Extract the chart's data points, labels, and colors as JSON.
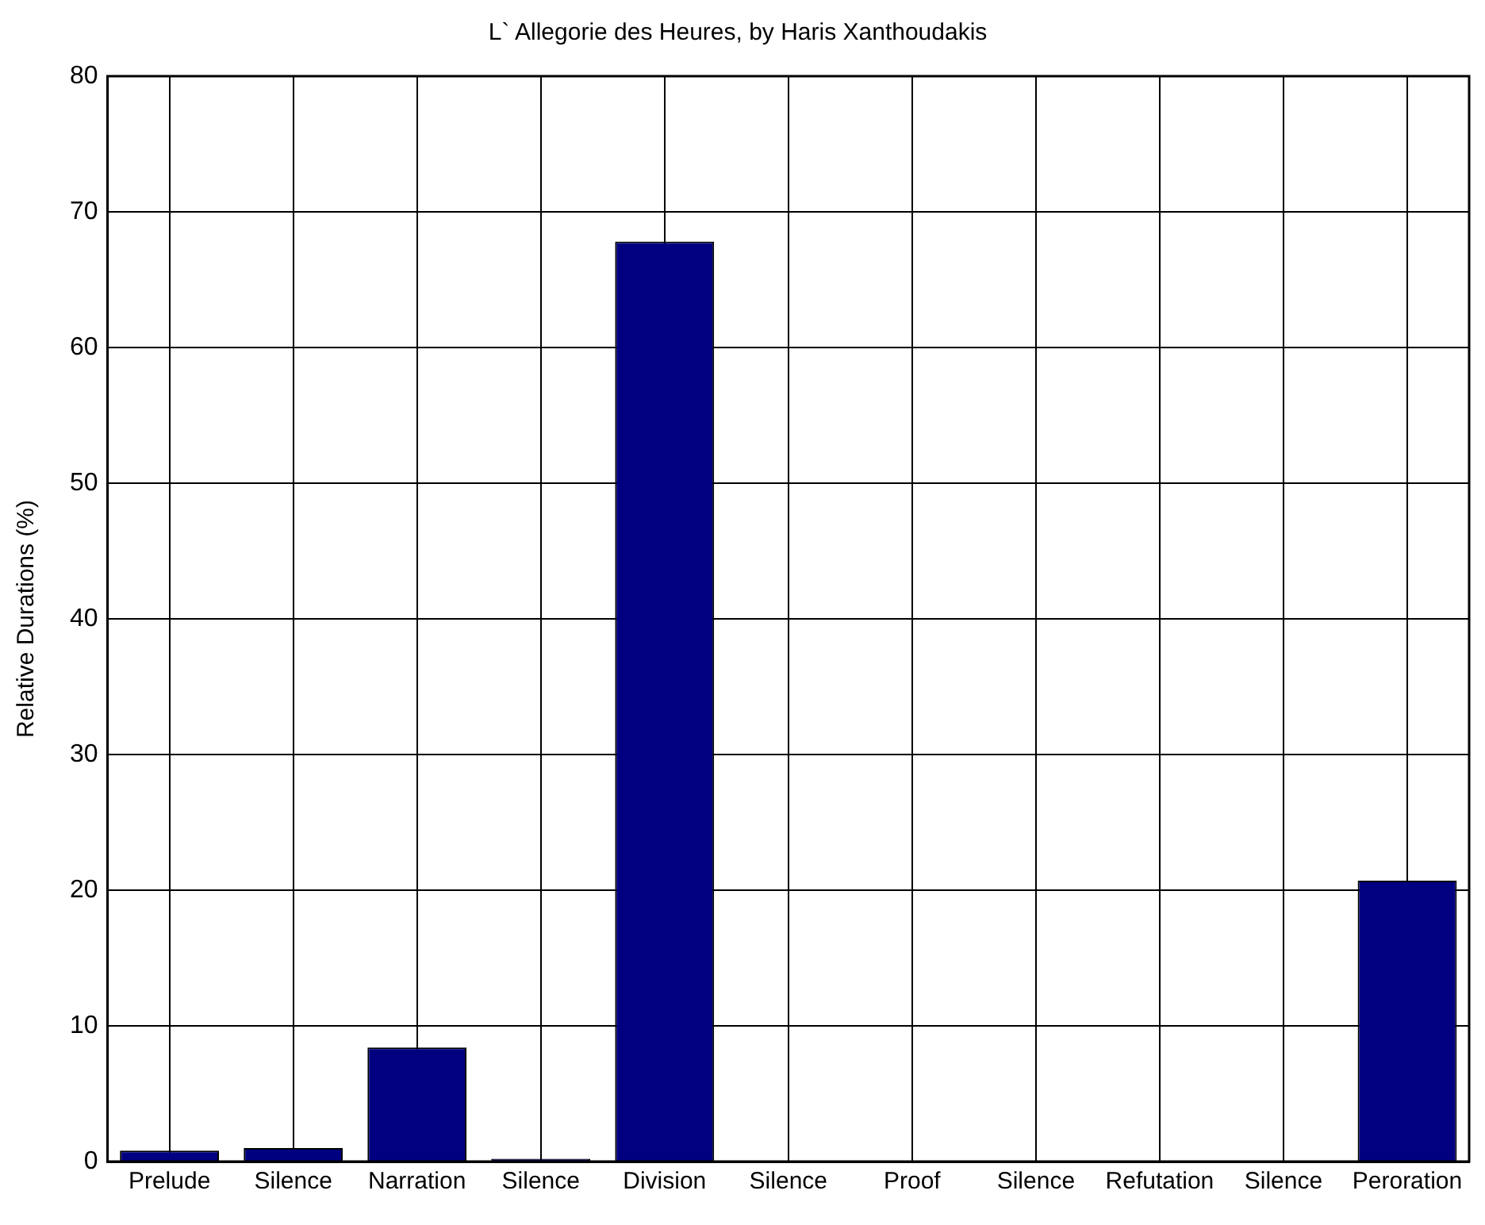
{
  "chart_data": {
    "type": "bar",
    "title": "L` Allegorie des Heures, by Haris Xanthoudakis",
    "ylabel": "Relative Durations (%)",
    "categories": [
      "Prelude",
      "Silence",
      "Narration",
      "Silence",
      "Division",
      "Silence",
      "Proof",
      "Silence",
      "Refutation",
      "Silence",
      "Peroration"
    ],
    "values": [
      0.8,
      1.0,
      8.4,
      0.2,
      67.8,
      0,
      0,
      0,
      0,
      0,
      20.7
    ],
    "color": "#000080",
    "ylim": [
      0,
      80
    ],
    "yticks": [
      0,
      10,
      20,
      30,
      40,
      50,
      60,
      70,
      80
    ],
    "grid": true
  }
}
